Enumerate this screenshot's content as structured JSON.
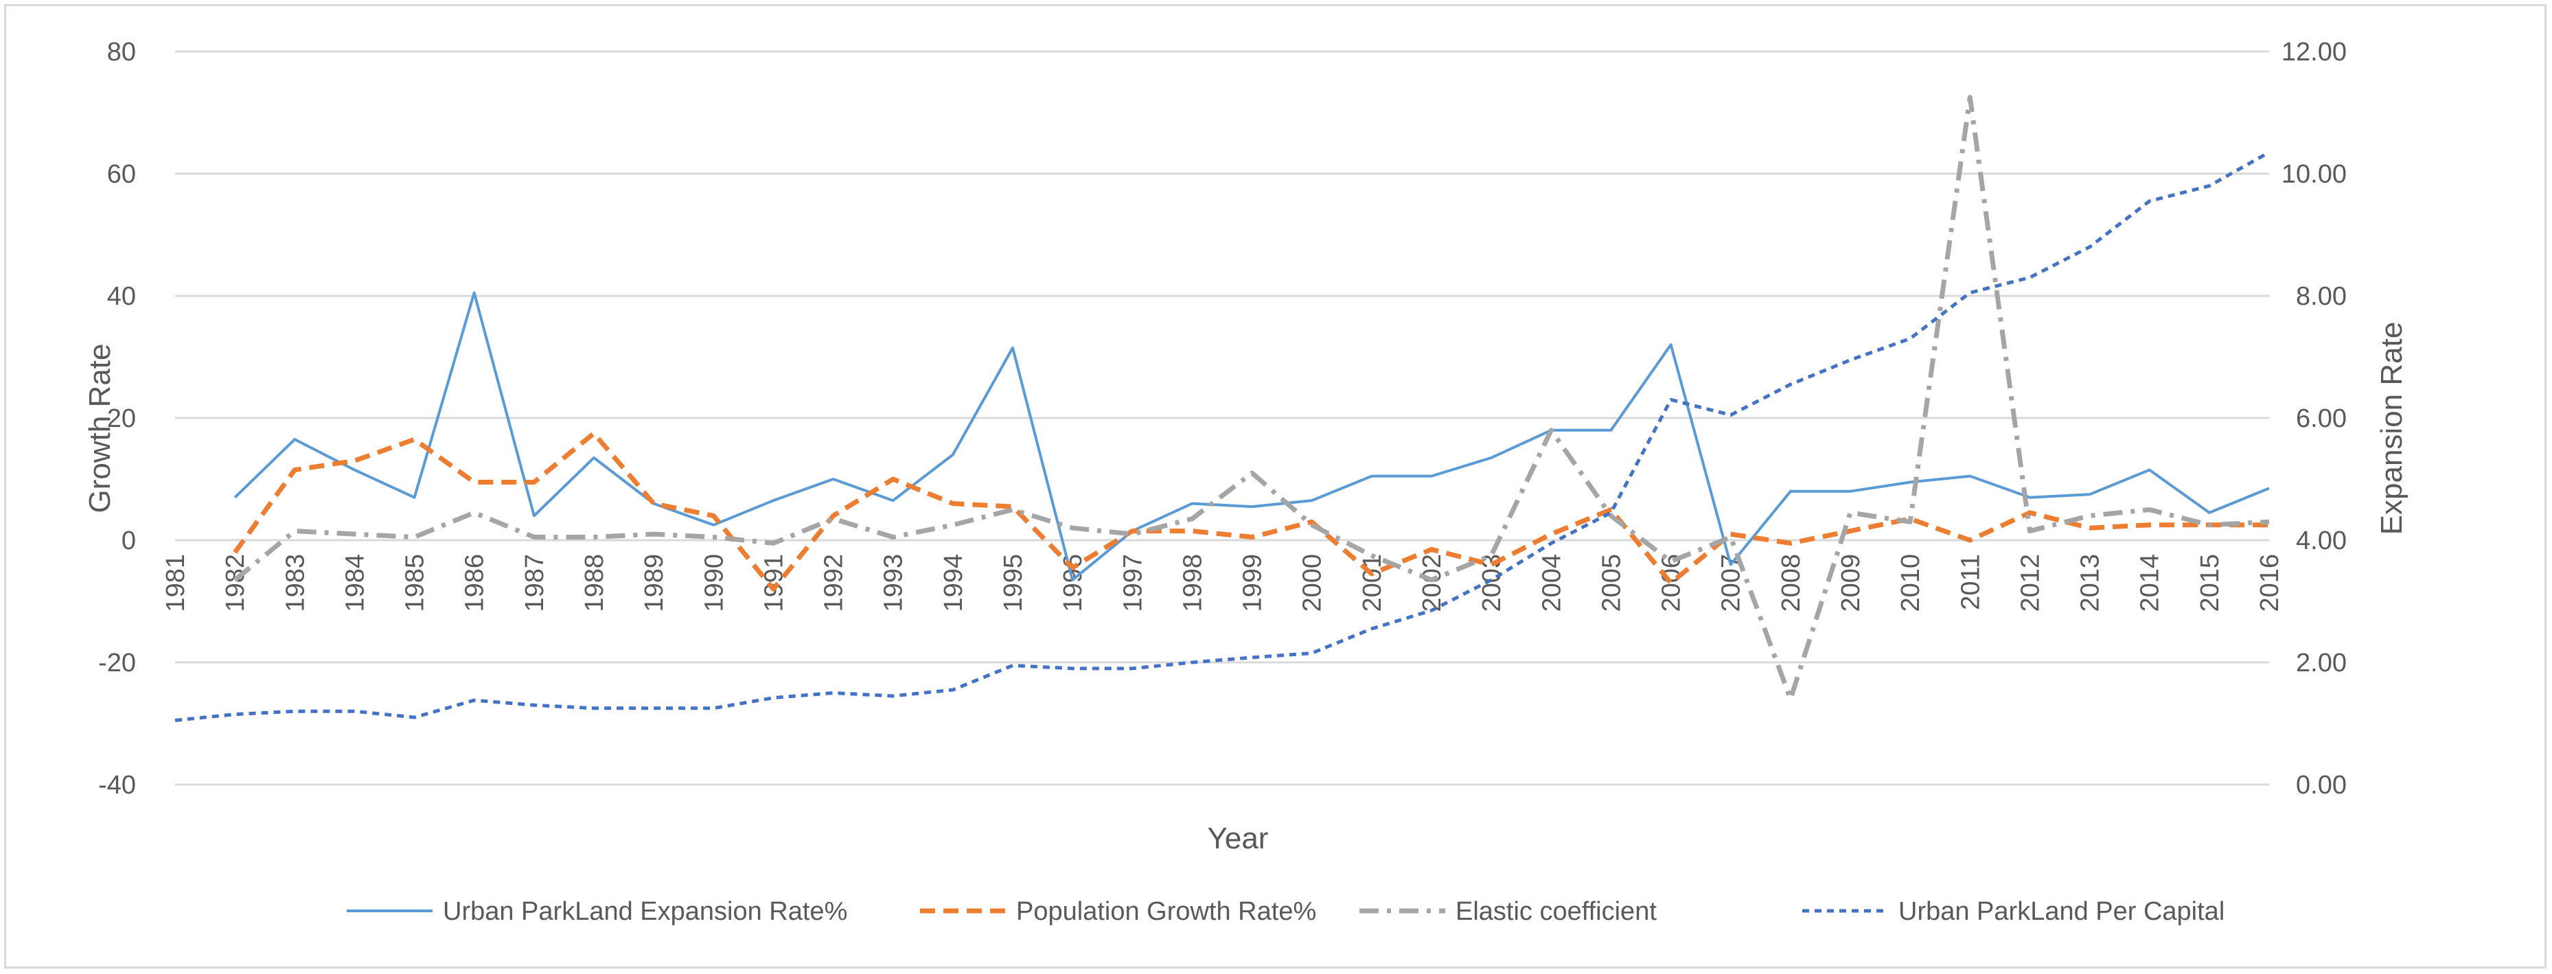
{
  "chart_data": {
    "type": "line",
    "title": "",
    "xlabel": "Year",
    "ylabel": "Growth Rate",
    "y2label": "Expansion Rate",
    "categories": [
      "1981",
      "1982",
      "1983",
      "1984",
      "1985",
      "1986",
      "1987",
      "1988",
      "1989",
      "1990",
      "1991",
      "1992",
      "1993",
      "1994",
      "1995",
      "1996",
      "1997",
      "1998",
      "1999",
      "2000",
      "2001",
      "2002",
      "2003",
      "2004",
      "2005",
      "2006",
      "2007",
      "2008",
      "2009",
      "2010",
      "2011",
      "2012",
      "2013",
      "2014",
      "2015",
      "2016"
    ],
    "ylim": [
      -40,
      80
    ],
    "yticks": [
      "80",
      "60",
      "40",
      "20",
      "0",
      "-20",
      "-40"
    ],
    "y2lim": [
      0,
      12
    ],
    "y2ticks": [
      "12.00",
      "10.00",
      "8.00",
      "6.00",
      "4.00",
      "2.00",
      "0.00"
    ],
    "grid": true,
    "legend_position": "bottom",
    "series": [
      {
        "name": "Urban ParkLand Expansion Rate%",
        "axis": "left",
        "style": "solid",
        "color": "#5b9bd5",
        "values": [
          null,
          7,
          16.5,
          11.5,
          7,
          40.5,
          4,
          13.5,
          6,
          2.5,
          6.5,
          10,
          6.5,
          14,
          31.5,
          -6.5,
          1.5,
          6,
          5.5,
          6.5,
          10.5,
          10.5,
          13.5,
          18,
          18,
          32,
          -4,
          8,
          8,
          9.5,
          10.5,
          7,
          7.5,
          11.5,
          4.5,
          8.5
        ]
      },
      {
        "name": "Population Growth Rate%",
        "axis": "left",
        "style": "dash",
        "color": "#ed7d31",
        "values": [
          null,
          -2,
          11.5,
          13,
          16.5,
          9.5,
          9.5,
          17.5,
          6,
          4,
          -8,
          4,
          10,
          6,
          5.5,
          -4.5,
          1.5,
          1.5,
          0.5,
          3,
          -5.5,
          -1.5,
          -4,
          1,
          5,
          -7,
          1,
          -0.5,
          1.5,
          3.5,
          0,
          4.5,
          2,
          2.5,
          2.5,
          2.5
        ]
      },
      {
        "name": "Elastic coefficient",
        "axis": "left",
        "style": "dashdot",
        "color": "#a5a5a5",
        "values": [
          null,
          -6.5,
          1.5,
          1,
          0.5,
          4.5,
          0.5,
          0.5,
          1,
          0.5,
          -0.5,
          3.5,
          0.5,
          2.5,
          5,
          2,
          1,
          3.5,
          11,
          2.5,
          -2.5,
          -6.5,
          -2.5,
          18,
          4,
          -3.5,
          0.5,
          -26,
          4.5,
          3,
          72.5,
          1.5,
          4,
          5,
          2.5,
          3
        ]
      },
      {
        "name": "Urban ParkLand Per Capital",
        "axis": "right",
        "style": "shortdash",
        "color": "#4472c4",
        "values": [
          1.05,
          1.15,
          1.2,
          1.2,
          1.1,
          1.38,
          1.3,
          1.25,
          1.25,
          1.25,
          1.42,
          1.5,
          1.45,
          1.55,
          1.95,
          1.9,
          1.9,
          2.0,
          2.08,
          2.15,
          2.55,
          2.85,
          3.35,
          3.95,
          4.45,
          6.3,
          6.05,
          6.55,
          6.95,
          7.3,
          8.05,
          8.3,
          8.8,
          9.55,
          9.8,
          10.35
        ]
      }
    ]
  }
}
